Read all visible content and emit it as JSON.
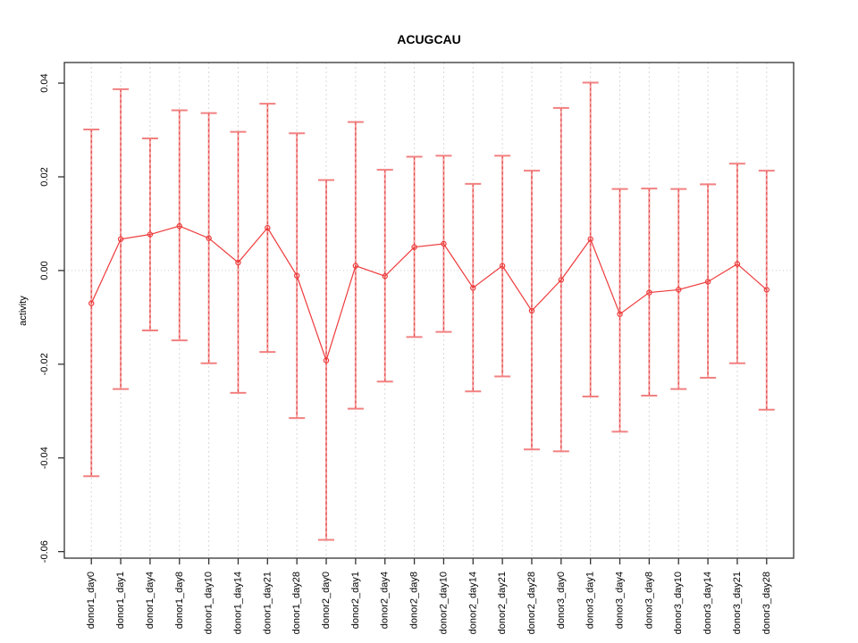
{
  "chart_data": {
    "type": "line",
    "title": "ACUGCAU",
    "ylabel": "activity",
    "xlabel": "",
    "legend": "none",
    "grid": "vertical dashed gray line at each category; dotted gray horizontal line at y=0",
    "categories": [
      "donor1_day0",
      "donor1_day1",
      "donor1_day4",
      "donor1_day8",
      "donor1_day10",
      "donor1_day14",
      "donor1_day21",
      "donor1_day28",
      "donor2_day0",
      "donor2_day1",
      "donor2_day4",
      "donor2_day8",
      "donor2_day10",
      "donor2_day14",
      "donor2_day21",
      "donor2_day28",
      "donor3_day0",
      "donor3_day1",
      "donor3_day4",
      "donor3_day8",
      "donor3_day10",
      "donor3_day14",
      "donor3_day21",
      "donor3_day28"
    ],
    "series": [
      {
        "name": "activity",
        "marker": "open-circle",
        "values": [
          -0.007,
          0.0067,
          0.0077,
          0.0095,
          0.0069,
          0.0017,
          0.0091,
          -0.0011,
          -0.0192,
          0.001,
          -0.0012,
          0.005,
          0.0057,
          -0.0037,
          0.001,
          -0.0086,
          -0.002,
          0.0067,
          -0.0093,
          -0.0047,
          -0.0041,
          -0.0024,
          0.0014,
          -0.0041
        ],
        "upper": [
          0.0301,
          0.0387,
          0.0282,
          0.0342,
          0.0336,
          0.0296,
          0.0356,
          0.0293,
          0.0193,
          0.0317,
          0.0215,
          0.0243,
          0.0245,
          0.0185,
          0.0245,
          0.0213,
          0.0347,
          0.0401,
          0.0174,
          0.0175,
          0.0174,
          0.0184,
          0.0228,
          0.0213
        ],
        "lower": [
          -0.0439,
          -0.0253,
          -0.0128,
          -0.0149,
          -0.0198,
          -0.0261,
          -0.0174,
          -0.0315,
          -0.0575,
          -0.0295,
          -0.0237,
          -0.0142,
          -0.0131,
          -0.0258,
          -0.0226,
          -0.0382,
          -0.0386,
          -0.0269,
          -0.0344,
          -0.0267,
          -0.0253,
          -0.0229,
          -0.0198,
          -0.0297
        ]
      }
    ],
    "yticks": {
      "values": [
        0.04,
        0.02,
        0.0,
        -0.02,
        -0.04,
        -0.06
      ],
      "labels": [
        "0.04",
        "0.02",
        "0.00",
        "-0.02",
        "-0.04",
        "-0.06"
      ]
    },
    "ylim": [
      -0.0614,
      0.0444
    ],
    "colors": {
      "point": "#ee3a3a",
      "line": "#ee3a3a",
      "error_bar": "#f49e9e",
      "error_bar_dash": "#e23c3c",
      "error_cap": "#f28080",
      "grid": "#d8d8d8",
      "zero_line": "#c9c9c9",
      "axis": "#333333",
      "text": "#000000",
      "background": "#ffffff"
    }
  }
}
